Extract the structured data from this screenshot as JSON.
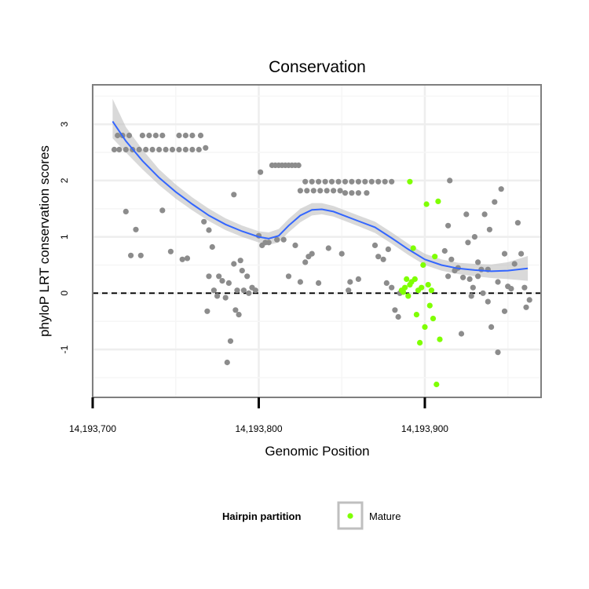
{
  "chart_data": {
    "type": "scatter",
    "title": "Conservation",
    "xlabel": "Genomic Position",
    "ylabel": "phyloP LRT conservation scores",
    "xlim": [
      14193700,
      14193970
    ],
    "ylim": [
      -1.85,
      3.7
    ],
    "x_ticks": [
      14193700,
      14193800,
      14193900
    ],
    "x_tick_labels": [
      "14,193,700",
      "14,193,800",
      "14,193,900"
    ],
    "y_ticks": [
      -1,
      0,
      1,
      2,
      3
    ],
    "y_tick_labels": [
      "-1",
      "0",
      "1",
      "2",
      "3"
    ],
    "grid": true,
    "reference_line": {
      "y": 0,
      "style": "dashed"
    },
    "colors": {
      "other": "#8c8c8c",
      "mature": "#7fff00",
      "smooth": "#3366ff",
      "ribbon": "#bfbfbf"
    },
    "legend": {
      "title": "Hairpin partition",
      "position": "bottom",
      "entries": [
        {
          "label": "Mature",
          "color": "#7fff00"
        }
      ]
    },
    "smooth": {
      "x": [
        14193712,
        14193720,
        14193730,
        14193740,
        14193750,
        14193760,
        14193770,
        14193780,
        14193790,
        14193800,
        14193806,
        14193812,
        14193818,
        14193825,
        14193832,
        14193838,
        14193845,
        14193852,
        14193860,
        14193870,
        14193880,
        14193890,
        14193900,
        14193910,
        14193920,
        14193930,
        14193940,
        14193950,
        14193962
      ],
      "y": [
        3.05,
        2.7,
        2.35,
        2.05,
        1.8,
        1.58,
        1.38,
        1.22,
        1.1,
        1.0,
        0.97,
        1.02,
        1.2,
        1.38,
        1.48,
        1.49,
        1.45,
        1.37,
        1.28,
        1.17,
        0.98,
        0.78,
        0.6,
        0.5,
        0.44,
        0.41,
        0.39,
        0.4,
        0.44
      ],
      "lower": [
        2.75,
        2.5,
        2.2,
        1.92,
        1.68,
        1.47,
        1.28,
        1.12,
        1.0,
        0.9,
        0.86,
        0.9,
        1.08,
        1.26,
        1.38,
        1.4,
        1.36,
        1.28,
        1.19,
        1.07,
        0.88,
        0.68,
        0.5,
        0.4,
        0.34,
        0.3,
        0.27,
        0.25,
        0.22
      ],
      "upper": [
        3.45,
        2.95,
        2.55,
        2.2,
        1.93,
        1.7,
        1.5,
        1.33,
        1.2,
        1.1,
        1.08,
        1.14,
        1.32,
        1.5,
        1.6,
        1.6,
        1.55,
        1.47,
        1.38,
        1.27,
        1.08,
        0.88,
        0.7,
        0.6,
        0.54,
        0.52,
        0.51,
        0.55,
        0.66
      ]
    },
    "series": [
      {
        "name": "Mature",
        "color": "#7fff00",
        "points": [
          [
            14193886,
            0.05
          ],
          [
            14193887,
            0.02
          ],
          [
            14193888,
            0.1
          ],
          [
            14193889,
            0.25
          ],
          [
            14193890,
            -0.05
          ],
          [
            14193891,
            0.15
          ],
          [
            14193891,
            1.98
          ],
          [
            14193892,
            0.2
          ],
          [
            14193893,
            0.8
          ],
          [
            14193894,
            0.25
          ],
          [
            14193895,
            -0.38
          ],
          [
            14193896,
            0.05
          ],
          [
            14193897,
            -0.88
          ],
          [
            14193898,
            0.1
          ],
          [
            14193899,
            0.5
          ],
          [
            14193900,
            -0.6
          ],
          [
            14193901,
            1.58
          ],
          [
            14193902,
            0.15
          ],
          [
            14193903,
            -0.22
          ],
          [
            14193904,
            0.05
          ],
          [
            14193905,
            -0.45
          ],
          [
            14193906,
            0.65
          ],
          [
            14193907,
            -1.62
          ],
          [
            14193908,
            1.63
          ],
          [
            14193909,
            -0.82
          ]
        ]
      },
      {
        "color": "#8c8c8c",
        "points": [
          [
            14193713,
            2.55
          ],
          [
            14193716,
            2.55
          ],
          [
            14193720,
            2.55
          ],
          [
            14193724,
            2.55
          ],
          [
            14193728,
            2.55
          ],
          [
            14193732,
            2.55
          ],
          [
            14193736,
            2.55
          ],
          [
            14193740,
            2.55
          ],
          [
            14193744,
            2.55
          ],
          [
            14193748,
            2.55
          ],
          [
            14193752,
            2.55
          ],
          [
            14193756,
            2.55
          ],
          [
            14193760,
            2.55
          ],
          [
            14193764,
            2.55
          ],
          [
            14193768,
            2.58
          ],
          [
            14193715,
            2.8
          ],
          [
            14193718,
            2.8
          ],
          [
            14193722,
            2.8
          ],
          [
            14193730,
            2.8
          ],
          [
            14193734,
            2.8
          ],
          [
            14193738,
            2.8
          ],
          [
            14193742,
            2.8
          ],
          [
            14193752,
            2.8
          ],
          [
            14193756,
            2.8
          ],
          [
            14193760,
            2.8
          ],
          [
            14193765,
            2.8
          ],
          [
            14193720,
            1.45
          ],
          [
            14193726,
            1.13
          ],
          [
            14193723,
            0.67
          ],
          [
            14193729,
            0.67
          ],
          [
            14193742,
            1.47
          ],
          [
            14193747,
            0.74
          ],
          [
            14193754,
            0.6
          ],
          [
            14193757,
            0.62
          ],
          [
            14193767,
            1.27
          ],
          [
            14193770,
            1.12
          ],
          [
            14193772,
            0.82
          ],
          [
            14193770,
            0.3
          ],
          [
            14193776,
            0.3
          ],
          [
            14193778,
            0.22
          ],
          [
            14193773,
            0.05
          ],
          [
            14193775,
            -0.05
          ],
          [
            14193780,
            -0.08
          ],
          [
            14193769,
            -0.32
          ],
          [
            14193782,
            0.18
          ],
          [
            14193785,
            0.52
          ],
          [
            14193787,
            0.05
          ],
          [
            14193783,
            -0.85
          ],
          [
            14193781,
            -1.23
          ],
          [
            14193786,
            -0.3
          ],
          [
            14193788,
            -0.38
          ],
          [
            14193790,
            0.4
          ],
          [
            14193791,
            0.05
          ],
          [
            14193793,
            0.3
          ],
          [
            14193794,
            0.0
          ],
          [
            14193796,
            0.1
          ],
          [
            14193798,
            0.05
          ],
          [
            14193800,
            1.02
          ],
          [
            14193802,
            0.85
          ],
          [
            14193789,
            0.58
          ],
          [
            14193785,
            1.75
          ],
          [
            14193801,
            2.15
          ],
          [
            14193804,
            0.9
          ],
          [
            14193806,
            0.9
          ],
          [
            14193808,
            2.27
          ],
          [
            14193810,
            2.27
          ],
          [
            14193812,
            2.27
          ],
          [
            14193814,
            2.27
          ],
          [
            14193816,
            2.27
          ],
          [
            14193818,
            2.27
          ],
          [
            14193820,
            2.27
          ],
          [
            14193822,
            2.27
          ],
          [
            14193824,
            2.27
          ],
          [
            14193811,
            0.95
          ],
          [
            14193815,
            0.95
          ],
          [
            14193818,
            0.3
          ],
          [
            14193822,
            0.85
          ],
          [
            14193825,
            0.2
          ],
          [
            14193828,
            0.55
          ],
          [
            14193830,
            0.65
          ],
          [
            14193832,
            0.7
          ],
          [
            14193836,
            0.18
          ],
          [
            14193842,
            0.8
          ],
          [
            14193825,
            1.82
          ],
          [
            14193829,
            1.82
          ],
          [
            14193833,
            1.82
          ],
          [
            14193837,
            1.82
          ],
          [
            14193841,
            1.82
          ],
          [
            14193845,
            1.82
          ],
          [
            14193849,
            1.82
          ],
          [
            14193828,
            1.98
          ],
          [
            14193832,
            1.98
          ],
          [
            14193836,
            1.98
          ],
          [
            14193840,
            1.98
          ],
          [
            14193844,
            1.98
          ],
          [
            14193848,
            1.98
          ],
          [
            14193852,
            1.98
          ],
          [
            14193856,
            1.98
          ],
          [
            14193860,
            1.98
          ],
          [
            14193864,
            1.98
          ],
          [
            14193868,
            1.98
          ],
          [
            14193872,
            1.98
          ],
          [
            14193876,
            1.98
          ],
          [
            14193880,
            1.98
          ],
          [
            14193852,
            1.78
          ],
          [
            14193856,
            1.78
          ],
          [
            14193860,
            1.78
          ],
          [
            14193865,
            1.78
          ],
          [
            14193850,
            0.7
          ],
          [
            14193854,
            0.05
          ],
          [
            14193855,
            0.2
          ],
          [
            14193860,
            0.25
          ],
          [
            14193870,
            0.85
          ],
          [
            14193872,
            0.65
          ],
          [
            14193875,
            0.6
          ],
          [
            14193877,
            0.18
          ],
          [
            14193878,
            0.78
          ],
          [
            14193880,
            0.1
          ],
          [
            14193882,
            -0.3
          ],
          [
            14193884,
            -0.42
          ],
          [
            14193885,
            0.0
          ],
          [
            14193912,
            0.75
          ],
          [
            14193915,
            2.0
          ],
          [
            14193918,
            0.4
          ],
          [
            14193916,
            0.6
          ],
          [
            14193914,
            0.3
          ],
          [
            14193920,
            0.45
          ],
          [
            14193923,
            0.28
          ],
          [
            14193925,
            1.4
          ],
          [
            14193927,
            0.25
          ],
          [
            14193929,
            0.1
          ],
          [
            14193932,
            0.55
          ],
          [
            14193934,
            0.42
          ],
          [
            14193936,
            1.4
          ],
          [
            14193938,
            0.42
          ],
          [
            14193940,
            -0.6
          ],
          [
            14193942,
            1.62
          ],
          [
            14193944,
            0.2
          ],
          [
            14193946,
            1.85
          ],
          [
            14193948,
            0.7
          ],
          [
            14193950,
            0.12
          ],
          [
            14193952,
            0.08
          ],
          [
            14193954,
            0.52
          ],
          [
            14193956,
            1.25
          ],
          [
            14193958,
            0.7
          ],
          [
            14193960,
            0.1
          ],
          [
            14193961,
            -0.25
          ],
          [
            14193963,
            -0.12
          ],
          [
            14193944,
            -1.05
          ],
          [
            14193948,
            -0.32
          ],
          [
            14193938,
            -0.15
          ],
          [
            14193935,
            0.0
          ],
          [
            14193930,
            1.0
          ],
          [
            14193926,
            0.9
          ],
          [
            14193922,
            -0.72
          ],
          [
            14193914,
            1.2
          ],
          [
            14193928,
            -0.05
          ],
          [
            14193939,
            1.13
          ],
          [
            14193932,
            0.3
          ]
        ]
      }
    ]
  }
}
